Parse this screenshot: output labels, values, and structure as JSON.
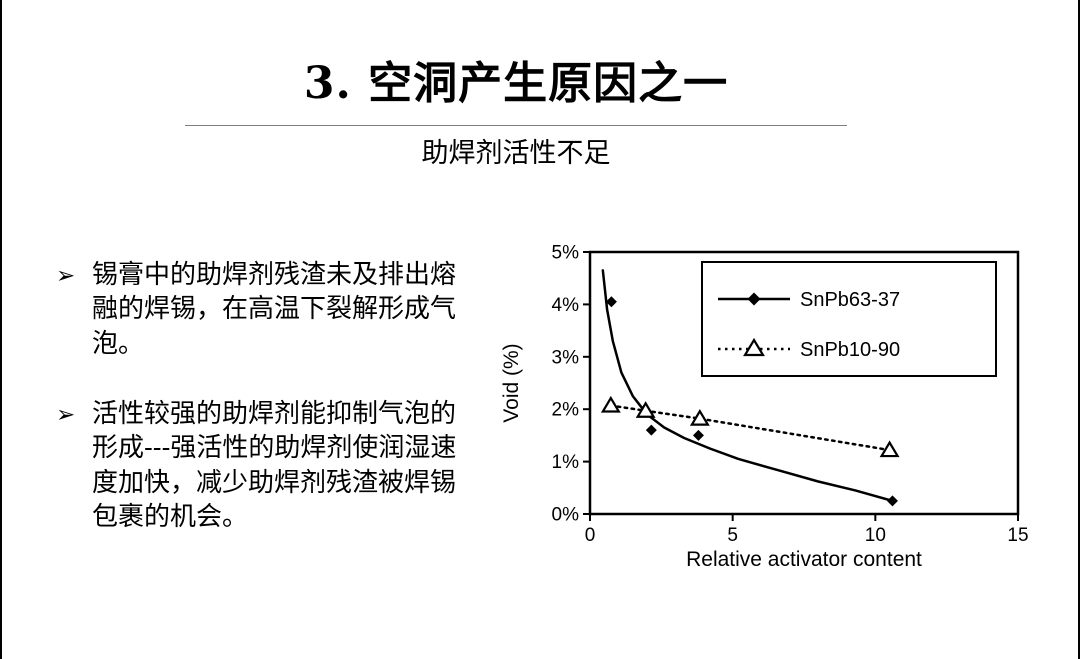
{
  "slide": {
    "title": "3. 空洞产生原因之一",
    "subtitle": "助焊剂活性不足",
    "bullet_marker": "➢",
    "bullets": [
      "锡膏中的助焊剂残渣未及排出熔融的焊锡，在高温下裂解形成气泡。",
      "活性较强的助焊剂能抑制气泡的形成---强活性的助焊剂使润湿速度加快，减少助焊剂残渣被焊锡包裹的机会。"
    ]
  },
  "colors": {
    "ink": "#000000",
    "background": "#ffffff",
    "title_rule": "#7f7f7f"
  },
  "chart_data": {
    "type": "line",
    "title": "",
    "xlabel": "Relative activator content",
    "ylabel": "Void (%)",
    "xlim": [
      0,
      15
    ],
    "ylim": [
      0,
      5
    ],
    "grid": false,
    "legend_position": "top-right-inside",
    "x_ticks": [
      {
        "value": 0,
        "label": "0"
      },
      {
        "value": 5,
        "label": "5"
      },
      {
        "value": 10,
        "label": "10"
      },
      {
        "value": 15,
        "label": "15"
      }
    ],
    "y_ticks": [
      {
        "value": 0,
        "label": "0%"
      },
      {
        "value": 1,
        "label": "1%"
      },
      {
        "value": 2,
        "label": "2%"
      },
      {
        "value": 3,
        "label": "3%"
      },
      {
        "value": 4,
        "label": "4%"
      },
      {
        "value": 5,
        "label": "5%"
      }
    ],
    "series": [
      {
        "name": "SnPb63-37",
        "marker": "diamond",
        "line": "solid",
        "points": [
          [
            0.75,
            4.05
          ],
          [
            1.95,
            1.95
          ],
          [
            2.15,
            1.6
          ],
          [
            3.8,
            1.5
          ],
          [
            10.6,
            0.25
          ]
        ],
        "trend": [
          [
            0.45,
            4.65
          ],
          [
            0.6,
            3.9
          ],
          [
            0.8,
            3.3
          ],
          [
            1.1,
            2.7
          ],
          [
            1.5,
            2.25
          ],
          [
            2.0,
            1.9
          ],
          [
            2.6,
            1.65
          ],
          [
            3.3,
            1.45
          ],
          [
            4.2,
            1.25
          ],
          [
            5.2,
            1.05
          ],
          [
            6.5,
            0.85
          ],
          [
            8.0,
            0.62
          ],
          [
            9.3,
            0.45
          ],
          [
            10.6,
            0.25
          ]
        ]
      },
      {
        "name": "SnPb10-90",
        "marker": "triangle-open",
        "line": "dotted",
        "points": [
          [
            0.73,
            2.07
          ],
          [
            1.95,
            1.97
          ],
          [
            3.85,
            1.82
          ],
          [
            10.5,
            1.22
          ]
        ],
        "trend": [
          [
            0.73,
            2.07
          ],
          [
            1.95,
            1.97
          ],
          [
            3.85,
            1.82
          ],
          [
            10.5,
            1.22
          ]
        ]
      }
    ]
  }
}
